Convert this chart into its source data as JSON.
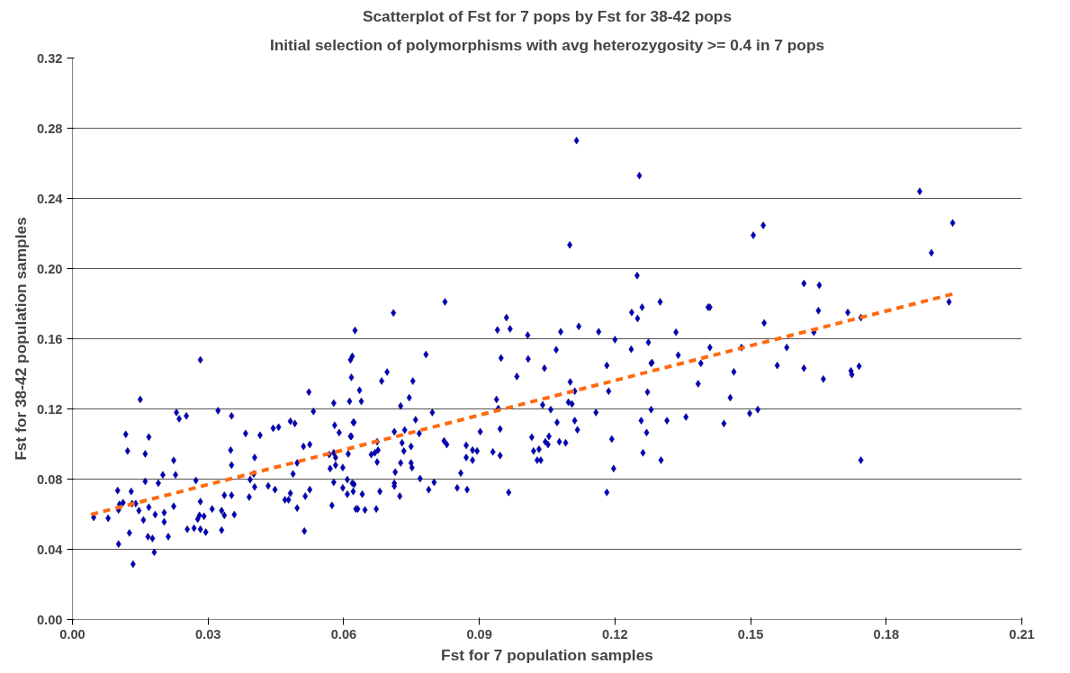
{
  "chart_data": {
    "type": "scatter",
    "title": "Scatterplot of Fst for 7 pops by Fst for 38-42 pops",
    "subtitle": "Initial selection of polymorphisms with avg heterozygosity >= 0.4 in 7 pops",
    "xlabel": "Fst for 7 population samples",
    "ylabel": "Fst for 38-42 population samples",
    "xlim": [
      0,
      0.21
    ],
    "ylim": [
      0,
      0.32
    ],
    "xticks": [
      {
        "value": 0,
        "label": "0.00"
      },
      {
        "value": 0.03,
        "label": "0.03"
      },
      {
        "value": 0.06,
        "label": "0.06"
      },
      {
        "value": 0.09,
        "label": "0.09"
      },
      {
        "value": 0.12,
        "label": "0.12"
      },
      {
        "value": 0.15,
        "label": "0.15"
      },
      {
        "value": 0.18,
        "label": "0.18"
      },
      {
        "value": 0.21,
        "label": "0.21"
      }
    ],
    "yticks": [
      {
        "value": 0,
        "label": "0.00"
      },
      {
        "value": 0.04,
        "label": "0.04"
      },
      {
        "value": 0.08,
        "label": "0.08"
      },
      {
        "value": 0.12,
        "label": "0.12"
      },
      {
        "value": 0.16,
        "label": "0.16"
      },
      {
        "value": 0.2,
        "label": "0.20"
      },
      {
        "value": 0.24,
        "label": "0.24"
      },
      {
        "value": 0.28,
        "label": "0.28"
      },
      {
        "value": 0.32,
        "label": "0.32"
      }
    ],
    "grid": "y",
    "marker": "diamond",
    "series": [
      {
        "color": "#0000c0",
        "x": [
          0.1115,
          0.1254,
          0.11,
          0.1874,
          0.1506,
          0.1528,
          0.19,
          0.1947,
          0.1249,
          0.1618,
          0.1652,
          0.1237,
          0.126,
          0.125,
          0.13,
          0.1335,
          0.1406,
          0.141,
          0.153,
          0.165,
          0.1715,
          0.1744,
          0.1939,
          0.164,
          0.1236,
          0.1274,
          0.134,
          0.141,
          0.148,
          0.158,
          0.128,
          0.139,
          0.0625,
          0.071,
          0.0824,
          0.094,
          0.096,
          0.0968,
          0.1007,
          0.108,
          0.112,
          0.1164,
          0.12,
          0.0619,
          0.0782,
          0.0948,
          0.1008,
          0.107,
          0.0283,
          0.015,
          0.0118,
          0.0169,
          0.0122,
          0.0161,
          0.023,
          0.0236,
          0.0252,
          0.0322,
          0.0352,
          0.0224,
          0.02,
          0.0228,
          0.0161,
          0.019,
          0.01,
          0.013,
          0.0112,
          0.0104,
          0.0132,
          0.014,
          0.0102,
          0.0147,
          0.0169,
          0.0047,
          0.0079,
          0.0157,
          0.0183,
          0.0203,
          0.0203,
          0.0224,
          0.0126,
          0.0102,
          0.0167,
          0.0177,
          0.0181,
          0.0134,
          0.0212,
          0.0273,
          0.0283,
          0.0281,
          0.0277,
          0.0291,
          0.0254,
          0.0269,
          0.0283,
          0.0295,
          0.0309,
          0.033,
          0.0336,
          0.033,
          0.0358,
          0.0336,
          0.0352,
          0.035,
          0.0352,
          0.0383,
          0.0415,
          0.0403,
          0.0393,
          0.0401,
          0.0403,
          0.0391,
          0.0433,
          0.0448,
          0.0444,
          0.0456,
          0.0482,
          0.0492,
          0.0523,
          0.0533,
          0.0511,
          0.0525,
          0.0497,
          0.0488,
          0.0482,
          0.047,
          0.0478,
          0.0497,
          0.0515,
          0.0525,
          0.0513,
          0.0578,
          0.058,
          0.059,
          0.0613,
          0.0615,
          0.0621,
          0.0568,
          0.0578,
          0.0582,
          0.057,
          0.0582,
          0.0598,
          0.0578,
          0.061,
          0.0608,
          0.0598,
          0.0608,
          0.0623,
          0.0621,
          0.0627,
          0.0574,
          0.0615,
          0.0617,
          0.0635,
          0.0639,
          0.0696,
          0.0684,
          0.0753,
          0.0745,
          0.0726,
          0.0623,
          0.0617,
          0.0712,
          0.0735,
          0.0759,
          0.0767,
          0.0796,
          0.0674,
          0.0676,
          0.0661,
          0.0669,
          0.0729,
          0.0733,
          0.0749,
          0.0674,
          0.0726,
          0.0749,
          0.0751,
          0.0714,
          0.0712,
          0.0712,
          0.0724,
          0.0769,
          0.0788,
          0.08,
          0.068,
          0.0641,
          0.0619,
          0.0631,
          0.0647,
          0.0672,
          0.0822,
          0.0828,
          0.0871,
          0.0871,
          0.0885,
          0.0885,
          0.0895,
          0.0859,
          0.0851,
          0.0873,
          0.0902,
          0.093,
          0.0946,
          0.0946,
          0.0938,
          0.0942,
          0.0965,
          0.0983,
          0.104,
          0.1058,
          0.1044,
          0.1016,
          0.102,
          0.1032,
          0.1028,
          0.1036,
          0.1046,
          0.1054,
          0.1052,
          0.1077,
          0.1091,
          0.1072,
          0.1101,
          0.1111,
          0.1097,
          0.1105,
          0.1111,
          0.1117,
          0.1158,
          0.1182,
          0.1186,
          0.1193,
          0.1197,
          0.1182,
          0.1282,
          0.1463,
          0.1559,
          0.1618,
          0.1661,
          0.1722,
          0.1724,
          0.174,
          0.1384,
          0.1272,
          0.1455,
          0.128,
          0.1258,
          0.1315,
          0.1357,
          0.1441,
          0.1498,
          0.1516,
          0.127,
          0.1262,
          0.1302,
          0.1744
        ],
        "values": [
          0.273,
          0.253,
          0.2135,
          0.244,
          0.219,
          0.2246,
          0.209,
          0.226,
          0.196,
          0.1915,
          0.1905,
          0.175,
          0.178,
          0.1716,
          0.181,
          0.1637,
          0.178,
          0.178,
          0.169,
          0.176,
          0.175,
          0.172,
          0.181,
          0.1637,
          0.154,
          0.158,
          0.1506,
          0.155,
          0.155,
          0.155,
          0.146,
          0.146,
          0.1647,
          0.1747,
          0.181,
          0.165,
          0.172,
          0.1656,
          0.162,
          0.164,
          0.167,
          0.164,
          0.1595,
          0.15,
          0.151,
          0.149,
          0.1485,
          0.1537,
          0.148,
          0.1254,
          0.1055,
          0.104,
          0.096,
          0.0944,
          0.118,
          0.1144,
          0.116,
          0.119,
          0.116,
          0.0907,
          0.0824,
          0.0824,
          0.0787,
          0.0777,
          0.0735,
          0.073,
          0.0666,
          0.0656,
          0.066,
          0.066,
          0.0624,
          0.062,
          0.064,
          0.0582,
          0.0577,
          0.0567,
          0.0598,
          0.0609,
          0.0556,
          0.0645,
          0.0493,
          0.043,
          0.0472,
          0.0462,
          0.0383,
          0.0315,
          0.0472,
          0.0792,
          0.0672,
          0.0593,
          0.0572,
          0.0588,
          0.0514,
          0.052,
          0.0514,
          0.0498,
          0.063,
          0.062,
          0.0593,
          0.0509,
          0.0598,
          0.0708,
          0.0708,
          0.0965,
          0.088,
          0.106,
          0.105,
          0.0923,
          0.0797,
          0.083,
          0.0755,
          0.0698,
          0.0761,
          0.074,
          0.109,
          0.1096,
          0.113,
          0.1117,
          0.1296,
          0.1186,
          0.0986,
          0.0997,
          0.0892,
          0.083,
          0.0719,
          0.0682,
          0.0682,
          0.0635,
          0.0703,
          0.074,
          0.0504,
          0.1233,
          0.1107,
          0.1065,
          0.1243,
          0.1044,
          0.1123,
          0.094,
          0.095,
          0.0923,
          0.086,
          0.088,
          0.0866,
          0.0782,
          0.0944,
          0.0797,
          0.075,
          0.0714,
          0.077,
          0.073,
          0.063,
          0.065,
          0.148,
          0.138,
          0.1306,
          0.1243,
          0.141,
          0.1359,
          0.1359,
          0.1264,
          0.1217,
          0.1123,
          0.1044,
          0.107,
          0.108,
          0.1138,
          0.106,
          0.118,
          0.1013,
          0.0965,
          0.094,
          0.095,
          0.1007,
          0.096,
          0.0986,
          0.0897,
          0.0892,
          0.0892,
          0.0866,
          0.084,
          0.0777,
          0.076,
          0.0703,
          0.0803,
          0.074,
          0.0782,
          0.073,
          0.0714,
          0.0777,
          0.063,
          0.0624,
          0.063,
          0.1018,
          0.0997,
          0.0992,
          0.0923,
          0.0908,
          0.0965,
          0.096,
          0.0834,
          0.075,
          0.074,
          0.107,
          0.0955,
          0.0934,
          0.1086,
          0.1254,
          0.1202,
          0.0724,
          0.1385,
          0.1223,
          0.1196,
          0.1432,
          0.1039,
          0.096,
          0.097,
          0.0908,
          0.0908,
          0.1013,
          0.1044,
          0.0997,
          0.1013,
          0.1007,
          0.1123,
          0.1354,
          0.1301,
          0.1238,
          0.1228,
          0.1133,
          0.1081,
          0.118,
          0.1448,
          0.1301,
          0.1028,
          0.086,
          0.0724,
          0.1464,
          0.1411,
          0.1448,
          0.1432,
          0.137,
          0.1417,
          0.1396,
          0.1443,
          0.1343,
          0.1296,
          0.1264,
          0.1196,
          0.1133,
          0.1133,
          0.1154,
          0.1117,
          0.1175,
          0.1196,
          0.1065,
          0.095,
          0.0908,
          0.0908
        ]
      },
      {
        "type": "line",
        "color": "#ff6a10",
        "line_style": "dashed",
        "marker": "none",
        "x": [
          0.0041,
          0.195
        ],
        "values": [
          0.0598,
          0.1857
        ]
      }
    ]
  }
}
